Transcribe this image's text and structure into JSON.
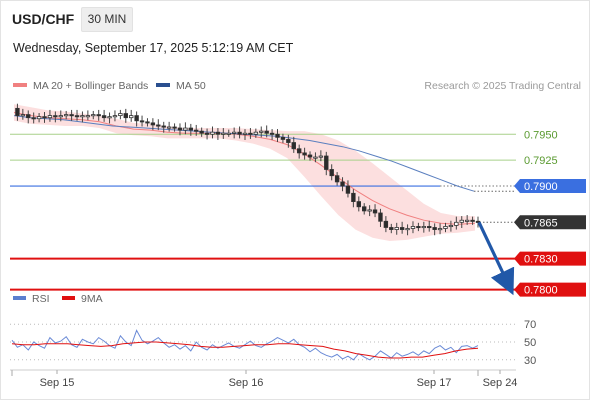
{
  "header": {
    "symbol": "USD/CHF",
    "timeframe": "30 MIN"
  },
  "datetime": "Wednesday, September 17, 2025 5:12:19 AM CET",
  "legend": {
    "ma20": {
      "label": "MA 20 + Bollinger Bands",
      "color": "#f08080"
    },
    "ma50": {
      "label": "MA 50",
      "color": "#2a4f8f"
    },
    "credit": "Research © 2025 Trading Central"
  },
  "sub_legend": {
    "rsi": {
      "label": "RSI",
      "color": "#5b7fcf"
    },
    "ma9": {
      "label": "9MA",
      "color": "#e01010"
    }
  },
  "chart_data": [
    {
      "type": "candlestick",
      "title": "USD/CHF",
      "y_range": [
        0.779,
        0.7985
      ],
      "x_tick_labels": [
        "Sep 15",
        "Sep 16",
        "Sep 17",
        "Sep 24"
      ],
      "levels": [
        {
          "value": 0.795,
          "label": "0.7950",
          "kind": "target",
          "color": "#a8d08a"
        },
        {
          "value": 0.7925,
          "label": "0.7925",
          "kind": "target",
          "color": "#a8d08a"
        },
        {
          "value": 0.79,
          "label": "0.7900",
          "kind": "pivot",
          "color": "#3a6fe0"
        },
        {
          "value": 0.7865,
          "label": "0.7865",
          "kind": "last",
          "color": "#333333"
        },
        {
          "value": 0.783,
          "label": "0.7830",
          "kind": "support",
          "color": "#e01010"
        },
        {
          "value": 0.78,
          "label": "0.7800",
          "kind": "support",
          "color": "#e01010"
        }
      ],
      "price_path": [
        0.7975,
        0.7968,
        0.7969,
        0.7966,
        0.7965,
        0.7967,
        0.7966,
        0.7968,
        0.7967,
        0.7968,
        0.7969,
        0.7968,
        0.7967,
        0.7968,
        0.7968,
        0.7969,
        0.7968,
        0.7966,
        0.7967,
        0.7968,
        0.797,
        0.7966,
        0.7968,
        0.7963,
        0.7962,
        0.7961,
        0.7959,
        0.7958,
        0.7957,
        0.7957,
        0.7956,
        0.7954,
        0.7956,
        0.7954,
        0.7953,
        0.7951,
        0.795,
        0.7952,
        0.795,
        0.7951,
        0.7951,
        0.7952,
        0.795,
        0.7951,
        0.795,
        0.7952,
        0.7953,
        0.7951,
        0.795,
        0.7947,
        0.7945,
        0.7942,
        0.7936,
        0.7932,
        0.793,
        0.7928,
        0.7928,
        0.7929,
        0.7916,
        0.791,
        0.7904,
        0.79,
        0.7893,
        0.7885,
        0.788,
        0.7876,
        0.7877,
        0.7874,
        0.7866,
        0.786,
        0.7858,
        0.786,
        0.7858,
        0.7859,
        0.7861,
        0.786,
        0.7861,
        0.786,
        0.7858,
        0.7859,
        0.7861,
        0.7862,
        0.7865,
        0.7867,
        0.7867,
        0.7866,
        0.7865
      ],
      "ma50": [
        0.7968,
        0.7966,
        0.7965,
        0.7964,
        0.7962,
        0.796,
        0.7958,
        0.7957,
        0.7956,
        0.7955,
        0.7954,
        0.7953,
        0.7952,
        0.7951,
        0.795,
        0.7949,
        0.7948,
        0.7946,
        0.7944,
        0.7941,
        0.7938,
        0.7934,
        0.7929,
        0.7924,
        0.7918,
        0.7912,
        0.7906,
        0.79,
        0.7895
      ],
      "ma20": [
        0.7971,
        0.7968,
        0.7966,
        0.7965,
        0.7964,
        0.7962,
        0.7958,
        0.7955,
        0.7954,
        0.7952,
        0.7951,
        0.7951,
        0.7951,
        0.795,
        0.7948,
        0.7945,
        0.794,
        0.7931,
        0.792,
        0.7908,
        0.7896,
        0.7886,
        0.7878,
        0.7872,
        0.7867,
        0.7864,
        0.7863,
        0.7864
      ],
      "bollinger_width": [
        0.0008,
        0.0008,
        0.0007,
        0.0007,
        0.0006,
        0.0006,
        0.0007,
        0.0006,
        0.0006,
        0.0006,
        0.0005,
        0.0005,
        0.0005,
        0.0006,
        0.0007,
        0.0009,
        0.0013,
        0.0022,
        0.003,
        0.0036,
        0.0038,
        0.0036,
        0.0031,
        0.0024,
        0.0016,
        0.001,
        0.0008,
        0.0007
      ],
      "forecast": {
        "from": 0.7865,
        "to": 0.78,
        "direction": "down"
      }
    },
    {
      "type": "line",
      "title": "RSI",
      "y_range": [
        23,
        77
      ],
      "y_tick_labels": [
        "70",
        "50",
        "30"
      ],
      "series": [
        {
          "name": "RSI",
          "values": [
            52,
            44,
            47,
            41,
            50,
            46,
            43,
            55,
            49,
            51,
            56,
            47,
            44,
            53,
            50,
            48,
            55,
            51,
            46,
            43,
            57,
            50,
            46,
            63,
            52,
            48,
            51,
            55,
            49,
            44,
            47,
            42,
            46,
            40,
            50,
            44,
            41,
            47,
            43,
            46,
            49,
            45,
            43,
            47,
            51,
            46,
            44,
            48,
            51,
            55,
            52,
            49,
            53,
            47,
            44,
            39,
            43,
            38,
            35,
            33,
            36,
            31,
            34,
            30,
            37,
            33,
            30,
            34,
            40,
            36,
            32,
            38,
            34,
            36,
            39,
            35,
            40,
            37,
            43,
            46,
            41,
            44,
            38,
            45,
            46,
            43,
            46
          ]
        },
        {
          "name": "9MA",
          "values": [
            48,
            47,
            47,
            48,
            48,
            48,
            47,
            46,
            45,
            46,
            48,
            49,
            50,
            50,
            49,
            48,
            47,
            45,
            44,
            44,
            45,
            46,
            47,
            47,
            48,
            48,
            47,
            46,
            45,
            42,
            40,
            37,
            35,
            33,
            32,
            32,
            33,
            33,
            35,
            37,
            40,
            42,
            43
          ]
        }
      ]
    }
  ]
}
